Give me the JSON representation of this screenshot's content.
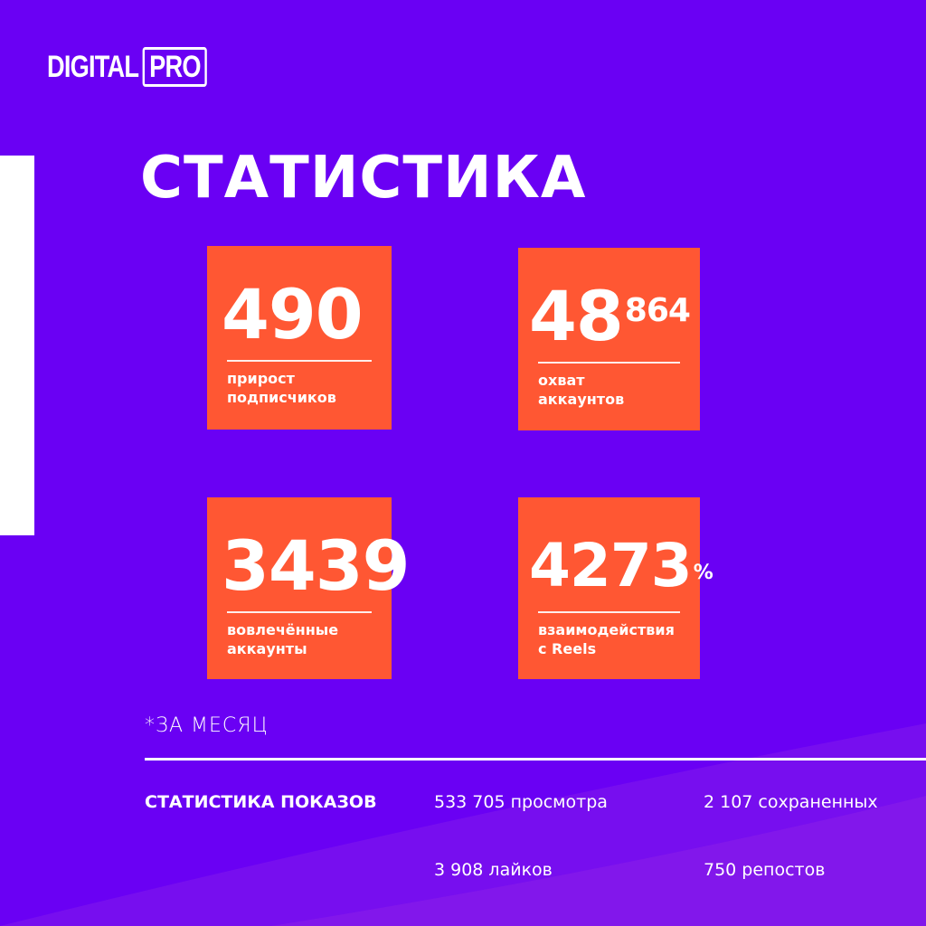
{
  "colors": {
    "background": "#6a00f4",
    "card": "#ff5733",
    "text": "#ffffff"
  },
  "logo": {
    "text_left": "DIGITAL",
    "text_boxed": "PRO"
  },
  "title": "СТАТИСТИКА",
  "cards": [
    {
      "main": "490",
      "sup": "",
      "label1": "прирост",
      "label2": "подписчиков"
    },
    {
      "main": "48",
      "sup": "864",
      "label1": "охват",
      "label2": "аккаунтов"
    },
    {
      "main": "3439",
      "sup": "",
      "label1": "вовлечённые",
      "label2": "аккаунты"
    },
    {
      "main": "4273",
      "sup": "%",
      "label1": "взаимодействия",
      "label2": "с Reels"
    }
  ],
  "note": "*ЗА МЕСЯЦ",
  "impressions": {
    "heading": "СТАТИСТИКА ПОКАЗОВ",
    "views": "533 705 просмотра",
    "saves": "2 107 сохраненных",
    "likes": "3 908 лайков",
    "reposts": "750 репостов"
  }
}
